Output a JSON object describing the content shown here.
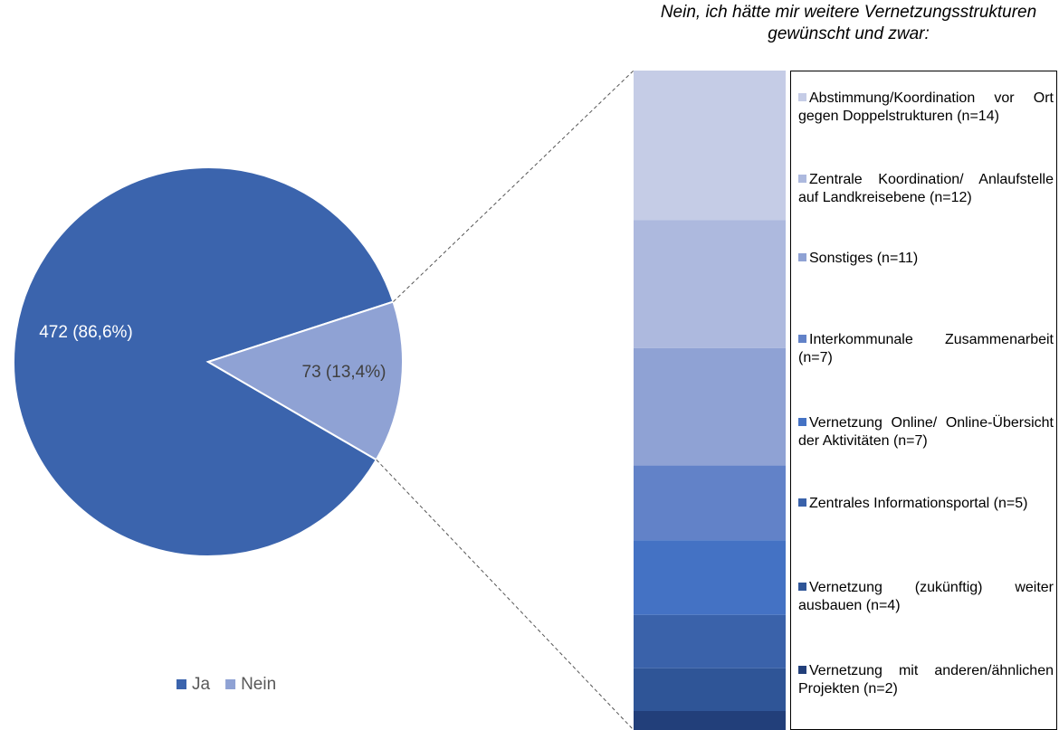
{
  "chart_data": [
    {
      "type": "pie",
      "categories": [
        "Ja",
        "Nein"
      ],
      "values": [
        472,
        73
      ],
      "value_labels": [
        "472  (86,6%)",
        "73 (13,4%)"
      ],
      "colors": [
        "#3b64ad",
        "#8fa2d4"
      ],
      "legend": "bottom"
    },
    {
      "type": "stacked-bar",
      "title": "Nein, ich hätte mir weitere Vernetzungsstrukturen gewünscht und zwar:",
      "series": [
        {
          "name": "Abstimmung/Koordination vor Ort gegen Doppelstrukturen (n=14)",
          "color": "#c5cce6",
          "values": [
            14
          ]
        },
        {
          "name": "Zentrale Koordination/ Anlaufstelle auf Landkreisebene (n=12)",
          "color": "#adb9de",
          "values": [
            12
          ]
        },
        {
          "name": "Sonstiges (n=11)",
          "color": "#8fa2d4",
          "values": [
            11
          ]
        },
        {
          "name": "Interkommunale Zusammenarbeit (n=7)",
          "color": "#6282c8",
          "values": [
            7
          ]
        },
        {
          "name": "Vernetzung Online/ Online-Übersicht der Aktivitäten (n=7)",
          "color": "#4472c4",
          "values": [
            7
          ]
        },
        {
          "name": "Zentrales Informationsportal (n=5)",
          "color": "#3a62aa",
          "values": [
            5
          ]
        },
        {
          "name": "Vernetzung (zukünftig) weiter ausbauen (n=4)",
          "color": "#2f5597",
          "values": [
            4
          ]
        },
        {
          "name": "Vernetzung mit anderen/ähnlichen Projekten (n=2)",
          "color": "#223f7a",
          "values": [
            2
          ]
        }
      ],
      "legend": "right"
    }
  ]
}
